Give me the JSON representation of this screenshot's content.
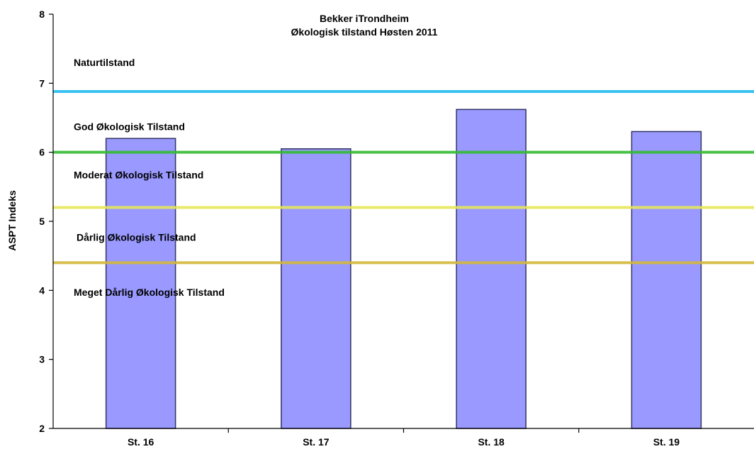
{
  "chart_data": {
    "type": "bar",
    "title": "Bekker iTrondheim",
    "subtitle": "Økologisk tilstand Høsten 2011",
    "xlabel": "",
    "ylabel": "ASPT Indeks",
    "categories": [
      "St. 16",
      "St. 17",
      "St. 18",
      "St. 19"
    ],
    "values": [
      6.2,
      6.05,
      6.62,
      6.3
    ],
    "ylim": [
      2,
      8
    ],
    "yticks": [
      2,
      3,
      4,
      5,
      6,
      7,
      8
    ],
    "grid": false,
    "legend": "none",
    "bar_color": "#9999ff",
    "bar_edge_color": "#333366",
    "thresholds": [
      {
        "value": 6.88,
        "color": "#22bbee"
      },
      {
        "value": 6.0,
        "color": "#33bb33"
      },
      {
        "value": 5.2,
        "color": "#e6e65a"
      },
      {
        "value": 4.4,
        "color": "#d4b83a"
      }
    ],
    "zones": [
      {
        "label": "Naturtilstand"
      },
      {
        "label": "God Økologisk Tilstand"
      },
      {
        "label": "Moderat Økologisk Tilstand"
      },
      {
        "label": "Dårlig Økologisk Tilstand"
      },
      {
        "label": "Meget Dårlig Økologisk Tilstand"
      }
    ]
  }
}
